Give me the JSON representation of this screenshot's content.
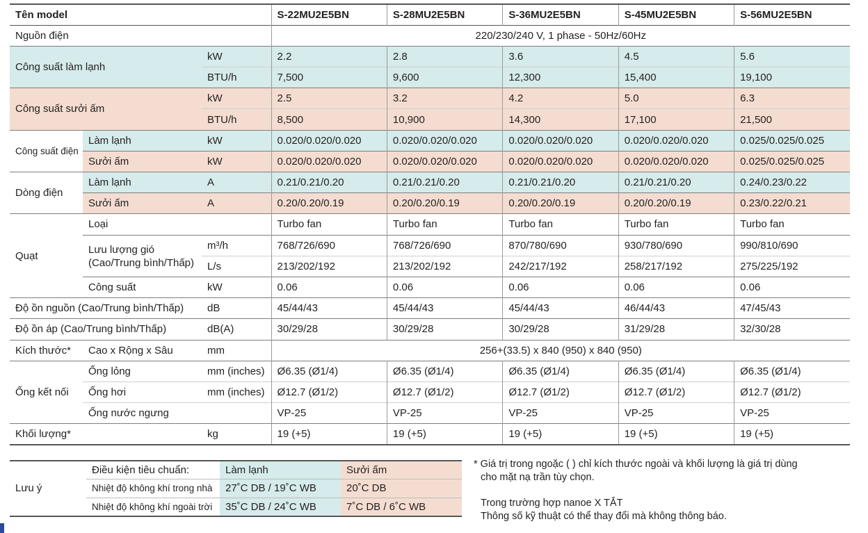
{
  "header": {
    "model_label": "Tên model",
    "models": [
      "S-22MU2E5BN",
      "S-28MU2E5BN",
      "S-36MU2E5BN",
      "S-45MU2E5BN",
      "S-56MU2E5BN"
    ]
  },
  "power_supply": {
    "label": "Nguồn điện",
    "value": "220/230/240 V, 1 phase - 50Hz/60Hz"
  },
  "cooling_capacity": {
    "label": "Công suất làm lạnh",
    "rows": [
      {
        "unit": "kW",
        "values": [
          "2.2",
          "2.8",
          "3.6",
          "4.5",
          "5.6"
        ]
      },
      {
        "unit": "BTU/h",
        "values": [
          "7,500",
          "9,600",
          "12,300",
          "15,400",
          "19,100"
        ]
      }
    ]
  },
  "heating_capacity": {
    "label": "Công suất sưởi ấm",
    "rows": [
      {
        "unit": "kW",
        "values": [
          "2.5",
          "3.2",
          "4.2",
          "5.0",
          "6.3"
        ]
      },
      {
        "unit": "BTU/h",
        "values": [
          "8,500",
          "10,900",
          "14,300",
          "17,100",
          "21,500"
        ]
      }
    ]
  },
  "power_input": {
    "label": "Công suất điện",
    "rows": [
      {
        "mode": "Làm lạnh",
        "unit": "kW",
        "values": [
          "0.020/0.020/0.020",
          "0.020/0.020/0.020",
          "0.020/0.020/0.020",
          "0.020/0.020/0.020",
          "0.025/0.025/0.025"
        ]
      },
      {
        "mode": "Sưởi ấm",
        "unit": "kW",
        "values": [
          "0.020/0.020/0.020",
          "0.020/0.020/0.020",
          "0.020/0.020/0.020",
          "0.020/0.020/0.020",
          "0.025/0.025/0.025"
        ]
      }
    ]
  },
  "current": {
    "label": "Dòng điện",
    "rows": [
      {
        "mode": "Làm lạnh",
        "unit": "A",
        "values": [
          "0.21/0.21/0.20",
          "0.21/0.21/0.20",
          "0.21/0.21/0.20",
          "0.21/0.21/0.20",
          "0.24/0.23/0.22"
        ]
      },
      {
        "mode": "Sưởi ấm",
        "unit": "A",
        "values": [
          "0.20/0.20/0.19",
          "0.20/0.20/0.19",
          "0.20/0.20/0.19",
          "0.20/0.20/0.19",
          "0.23/0.22/0.21"
        ]
      }
    ]
  },
  "fan": {
    "label": "Quạt",
    "type": {
      "label": "Loại",
      "values": [
        "Turbo fan",
        "Turbo fan",
        "Turbo fan",
        "Turbo fan",
        "Turbo fan"
      ]
    },
    "airflow": {
      "label": "Lưu lượng gió (Cao/Trung bình/Thấp)",
      "rows": [
        {
          "unit": "m³/h",
          "values": [
            "768/726/690",
            "768/726/690",
            "870/780/690",
            "930/780/690",
            "990/810/690"
          ]
        },
        {
          "unit": "L/s",
          "values": [
            "213/202/192",
            "213/202/192",
            "242/217/192",
            "258/217/192",
            "275/225/192"
          ]
        }
      ]
    },
    "output": {
      "label": "Công suất",
      "unit": "kW",
      "values": [
        "0.06",
        "0.06",
        "0.06",
        "0.06",
        "0.06"
      ]
    }
  },
  "noise_source": {
    "label": "Độ ồn nguồn (Cao/Trung bình/Thấp)",
    "unit": "dB",
    "values": [
      "45/44/43",
      "45/44/43",
      "45/44/43",
      "46/44/43",
      "47/45/43"
    ]
  },
  "noise_pressure": {
    "label": "Độ ồn áp (Cao/Trung bình/Thấp)",
    "unit": "dB(A)",
    "values": [
      "30/29/28",
      "30/29/28",
      "30/29/28",
      "31/29/28",
      "32/30/28"
    ]
  },
  "dimensions": {
    "label": "Kích thước*",
    "sub": "Cao x Rộng x Sâu",
    "unit": "mm",
    "value": "256+(33.5) x 840 (950) x 840 (950)"
  },
  "piping": {
    "label": "Ống kết nối",
    "rows": [
      {
        "name": "Ống lỏng",
        "unit": "mm (inches)",
        "values": [
          "Ø6.35 (Ø1/4)",
          "Ø6.35 (Ø1/4)",
          "Ø6.35 (Ø1/4)",
          "Ø6.35 (Ø1/4)",
          "Ø6.35 (Ø1/4)"
        ]
      },
      {
        "name": "Ống hơi",
        "unit": "mm (inches)",
        "values": [
          "Ø12.7 (Ø1/2)",
          "Ø12.7 (Ø1/2)",
          "Ø12.7 (Ø1/2)",
          "Ø12.7 (Ø1/2)",
          "Ø12.7 (Ø1/2)"
        ]
      },
      {
        "name": "Ống nước ngưng",
        "unit": "",
        "values": [
          "VP-25",
          "VP-25",
          "VP-25",
          "VP-25",
          "VP-25"
        ]
      }
    ]
  },
  "weight": {
    "label": "Khối lượng*",
    "unit": "kg",
    "values": [
      "19 (+5)",
      "19 (+5)",
      "19 (+5)",
      "19 (+5)",
      "19 (+5)"
    ]
  },
  "notes": {
    "label": "Lưu ý",
    "condition_label": "Điều kiện tiêu chuẩn:",
    "cool_header": "Làm lạnh",
    "heat_header": "Sưởi ấm",
    "rows": [
      {
        "name": "Nhiệt độ không khí trong nhà",
        "cool": "27˚C DB / 19˚C WB",
        "heat": "20˚C DB"
      },
      {
        "name": "Nhiệt độ không khí ngoài trời",
        "cool": "35˚C DB / 24˚C WB",
        "heat": "7˚C DB / 6˚C WB"
      }
    ]
  },
  "footnote": {
    "line1": "* Giá trị trong ngoặc ( ) chỉ kích thước ngoài và khối lượng là giá trị dùng",
    "line2": "cho mặt nạ trần tùy chọn.",
    "line3": "Trong trường hợp nanoe X TẮT",
    "line4": "Thông số kỹ thuật có thể thay đổi mà không thông báo."
  },
  "colors": {
    "cool_bg": "#d6ebeb",
    "heat_bg": "#f4ddd0",
    "text": "#231f20"
  }
}
